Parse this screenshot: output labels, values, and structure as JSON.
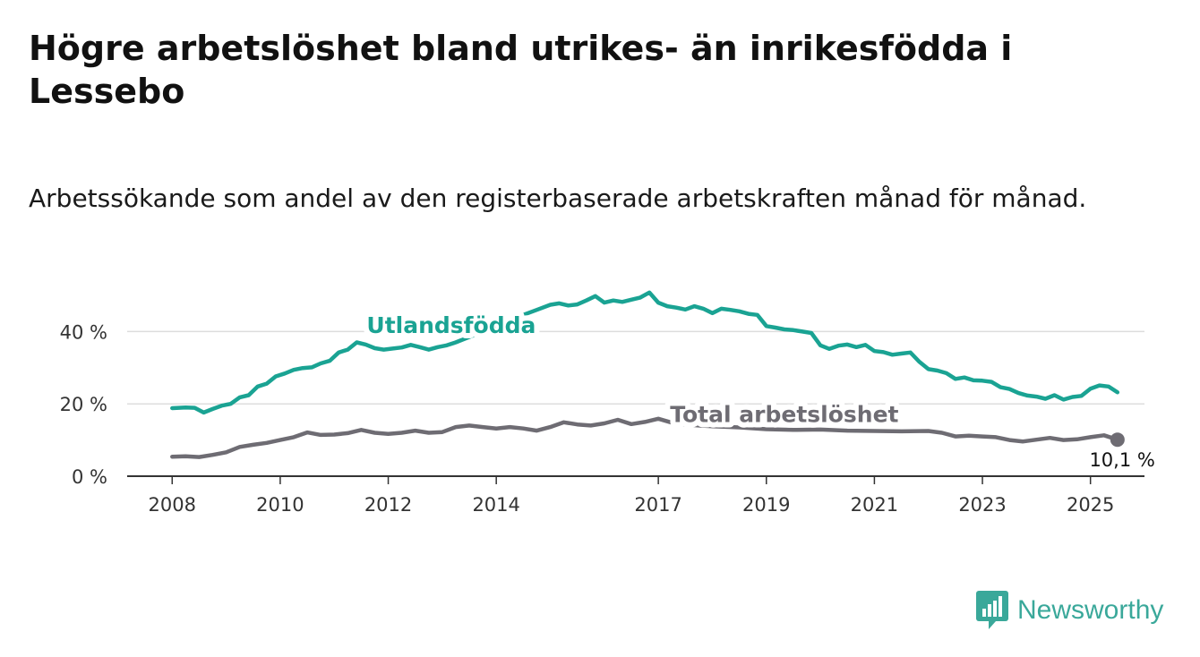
{
  "title": "Högre arbetslöshet bland utrikes- än inrikesfödda i Lessebo",
  "subtitle": "Arbetssökande som andel av den registerbaserade arbetskraften månad för månad.",
  "brand": {
    "name": "Newsworthy",
    "icon": "bar-chart-icon",
    "color": "#3aa89a"
  },
  "chart_data": {
    "type": "line",
    "x_ticks": [
      "2008",
      "2010",
      "2012",
      "2014",
      "2017",
      "2019",
      "2021",
      "2023",
      "2025"
    ],
    "y_ticks": [
      "0 %",
      "20 %",
      "40 %"
    ],
    "ylim": [
      0,
      50
    ],
    "xlim": [
      "2007-03",
      "2026-01"
    ],
    "grid": true,
    "end_label": "10,1 %",
    "series": [
      {
        "name": "Utlandsfödda",
        "color": "#1aa393",
        "points": [
          [
            "2008-01",
            18.8
          ],
          [
            "2008-04",
            19.0
          ],
          [
            "2008-06",
            18.9
          ],
          [
            "2008-08",
            17.6
          ],
          [
            "2008-10",
            18.6
          ],
          [
            "2008-12",
            19.5
          ],
          [
            "2009-02",
            20.0
          ],
          [
            "2009-04",
            21.8
          ],
          [
            "2009-06",
            22.4
          ],
          [
            "2009-08",
            24.8
          ],
          [
            "2009-10",
            25.6
          ],
          [
            "2009-12",
            27.6
          ],
          [
            "2010-02",
            28.4
          ],
          [
            "2010-04",
            29.4
          ],
          [
            "2010-06",
            29.9
          ],
          [
            "2010-08",
            30.1
          ],
          [
            "2010-10",
            31.2
          ],
          [
            "2010-12",
            31.9
          ],
          [
            "2011-02",
            34.2
          ],
          [
            "2011-04",
            35.0
          ],
          [
            "2011-06",
            37.0
          ],
          [
            "2011-08",
            36.4
          ],
          [
            "2011-10",
            35.4
          ],
          [
            "2011-12",
            35.0
          ],
          [
            "2012-02",
            35.3
          ],
          [
            "2012-04",
            35.6
          ],
          [
            "2012-06",
            36.3
          ],
          [
            "2012-08",
            35.7
          ],
          [
            "2012-10",
            35.0
          ],
          [
            "2012-12",
            35.7
          ],
          [
            "2013-02",
            36.2
          ],
          [
            "2013-04",
            37.0
          ],
          [
            "2013-07",
            38.5
          ],
          [
            "2013-10",
            40.0
          ],
          [
            "2014-01",
            41.5
          ],
          [
            "2014-04",
            43.0
          ],
          [
            "2014-07",
            44.6
          ],
          [
            "2014-10",
            46.0
          ],
          [
            "2015-01",
            47.4
          ],
          [
            "2015-03",
            47.8
          ],
          [
            "2015-05",
            47.2
          ],
          [
            "2015-07",
            47.5
          ],
          [
            "2015-09",
            48.6
          ],
          [
            "2015-11",
            49.8
          ],
          [
            "2016-01",
            48.0
          ],
          [
            "2016-03",
            48.6
          ],
          [
            "2016-05",
            48.2
          ],
          [
            "2016-07",
            48.8
          ],
          [
            "2016-09",
            49.4
          ],
          [
            "2016-11",
            50.8
          ],
          [
            "2017-01",
            48.0
          ],
          [
            "2017-03",
            47.0
          ],
          [
            "2017-05",
            46.6
          ],
          [
            "2017-07",
            46.1
          ],
          [
            "2017-09",
            47.0
          ],
          [
            "2017-11",
            46.3
          ],
          [
            "2018-01",
            45.1
          ],
          [
            "2018-03",
            46.3
          ],
          [
            "2018-05",
            46.0
          ],
          [
            "2018-07",
            45.6
          ],
          [
            "2018-09",
            44.9
          ],
          [
            "2018-11",
            44.6
          ],
          [
            "2019-01",
            41.5
          ],
          [
            "2019-03",
            41.1
          ],
          [
            "2019-05",
            40.6
          ],
          [
            "2019-07",
            40.4
          ],
          [
            "2019-09",
            40.0
          ],
          [
            "2019-11",
            39.6
          ],
          [
            "2020-01",
            36.2
          ],
          [
            "2020-03",
            35.2
          ],
          [
            "2020-05",
            36.1
          ],
          [
            "2020-07",
            36.4
          ],
          [
            "2020-09",
            35.7
          ],
          [
            "2020-11",
            36.3
          ],
          [
            "2021-01",
            34.6
          ],
          [
            "2021-03",
            34.3
          ],
          [
            "2021-05",
            33.6
          ],
          [
            "2021-07",
            33.9
          ],
          [
            "2021-09",
            34.2
          ],
          [
            "2021-11",
            31.6
          ],
          [
            "2022-01",
            29.6
          ],
          [
            "2022-03",
            29.2
          ],
          [
            "2022-05",
            28.5
          ],
          [
            "2022-07",
            26.9
          ],
          [
            "2022-09",
            27.3
          ],
          [
            "2022-11",
            26.5
          ],
          [
            "2023-01",
            26.4
          ],
          [
            "2023-03",
            26.1
          ],
          [
            "2023-05",
            24.6
          ],
          [
            "2023-07",
            24.1
          ],
          [
            "2023-09",
            23.0
          ],
          [
            "2023-11",
            22.3
          ],
          [
            "2024-01",
            22.0
          ],
          [
            "2024-03",
            21.4
          ],
          [
            "2024-05",
            22.4
          ],
          [
            "2024-07",
            21.2
          ],
          [
            "2024-09",
            21.9
          ],
          [
            "2024-11",
            22.2
          ],
          [
            "2025-01",
            24.2
          ],
          [
            "2025-03",
            25.1
          ],
          [
            "2025-05",
            24.8
          ],
          [
            "2025-07",
            23.2
          ]
        ]
      },
      {
        "name": "Total arbetslöshet",
        "color": "#6e6c73",
        "points": [
          [
            "2008-01",
            5.4
          ],
          [
            "2008-04",
            5.5
          ],
          [
            "2008-07",
            5.3
          ],
          [
            "2008-10",
            5.9
          ],
          [
            "2009-01",
            6.6
          ],
          [
            "2009-04",
            8.1
          ],
          [
            "2009-07",
            8.7
          ],
          [
            "2009-10",
            9.2
          ],
          [
            "2010-01",
            10.0
          ],
          [
            "2010-04",
            10.8
          ],
          [
            "2010-07",
            12.1
          ],
          [
            "2010-10",
            11.4
          ],
          [
            "2011-01",
            11.5
          ],
          [
            "2011-04",
            11.9
          ],
          [
            "2011-07",
            12.8
          ],
          [
            "2011-10",
            12.0
          ],
          [
            "2012-01",
            11.7
          ],
          [
            "2012-04",
            12.0
          ],
          [
            "2012-07",
            12.6
          ],
          [
            "2012-10",
            12.0
          ],
          [
            "2013-01",
            12.2
          ],
          [
            "2013-04",
            13.6
          ],
          [
            "2013-07",
            14.0
          ],
          [
            "2013-10",
            13.6
          ],
          [
            "2014-01",
            13.2
          ],
          [
            "2014-04",
            13.6
          ],
          [
            "2014-07",
            13.2
          ],
          [
            "2014-10",
            12.6
          ],
          [
            "2015-01",
            13.6
          ],
          [
            "2015-04",
            14.9
          ],
          [
            "2015-07",
            14.3
          ],
          [
            "2015-10",
            14.0
          ],
          [
            "2016-01",
            14.6
          ],
          [
            "2016-04",
            15.6
          ],
          [
            "2016-07",
            14.4
          ],
          [
            "2016-10",
            15.0
          ],
          [
            "2017-01",
            15.9
          ],
          [
            "2017-04",
            14.8
          ],
          [
            "2017-07",
            14.3
          ],
          [
            "2017-10",
            14.0
          ],
          [
            "2018-01",
            13.8
          ],
          [
            "2018-07",
            13.5
          ],
          [
            "2019-01",
            13.0
          ],
          [
            "2019-07",
            12.8
          ],
          [
            "2020-01",
            12.9
          ],
          [
            "2020-07",
            12.6
          ],
          [
            "2021-01",
            12.5
          ],
          [
            "2021-07",
            12.4
          ],
          [
            "2022-01",
            12.5
          ],
          [
            "2022-04",
            12.0
          ],
          [
            "2022-07",
            11.0
          ],
          [
            "2022-10",
            11.2
          ],
          [
            "2023-01",
            11.0
          ],
          [
            "2023-04",
            10.8
          ],
          [
            "2023-07",
            10.0
          ],
          [
            "2023-10",
            9.6
          ],
          [
            "2024-01",
            10.1
          ],
          [
            "2024-04",
            10.6
          ],
          [
            "2024-07",
            10.0
          ],
          [
            "2024-10",
            10.2
          ],
          [
            "2025-01",
            10.8
          ],
          [
            "2025-04",
            11.3
          ],
          [
            "2025-07",
            10.1
          ]
        ]
      }
    ]
  }
}
